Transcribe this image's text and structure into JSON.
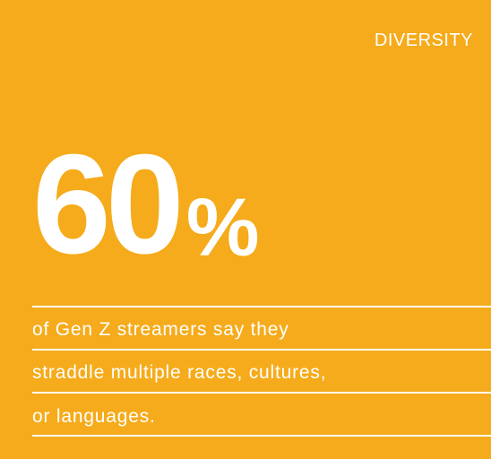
{
  "card": {
    "category": "DIVERSITY",
    "stat": {
      "number": "60",
      "unit": "%"
    },
    "caption_lines": [
      "of Gen Z streamers say they",
      "straddle multiple races, cultures,",
      "or languages."
    ],
    "colors": {
      "background": "#F5AB1B",
      "text": "#FFFFFF"
    }
  }
}
